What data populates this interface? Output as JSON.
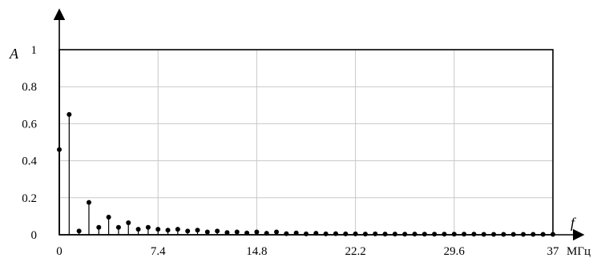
{
  "chart_data": {
    "type": "stem",
    "title": "",
    "ylabel": "A",
    "xlabel": "f",
    "xunit": "МГц",
    "xlim": [
      0,
      37
    ],
    "ylim": [
      0,
      1
    ],
    "xticks": [
      "0",
      "7.4",
      "14.8",
      "22.2",
      "29.6",
      "37"
    ],
    "yticks": [
      "0",
      "0.2",
      "0.4",
      "0.6",
      "0.8",
      "1"
    ],
    "grid": true,
    "x_step": 0.74,
    "values": [
      0.46,
      0.65,
      0.02,
      0.175,
      0.04,
      0.095,
      0.04,
      0.065,
      0.03,
      0.04,
      0.03,
      0.025,
      0.03,
      0.02,
      0.025,
      0.015,
      0.02,
      0.012,
      0.015,
      0.01,
      0.015,
      0.008,
      0.015,
      0.006,
      0.01,
      0.005,
      0.008,
      0.005,
      0.006,
      0.005,
      0.005,
      0.004,
      0.005,
      0.004,
      0.004,
      0.003,
      0.004,
      0.003,
      0.003,
      0.003,
      0.003,
      0.003,
      0.003,
      0.002,
      0.002,
      0.002,
      0.002,
      0.002,
      0.002,
      0.002,
      0.002
    ]
  }
}
